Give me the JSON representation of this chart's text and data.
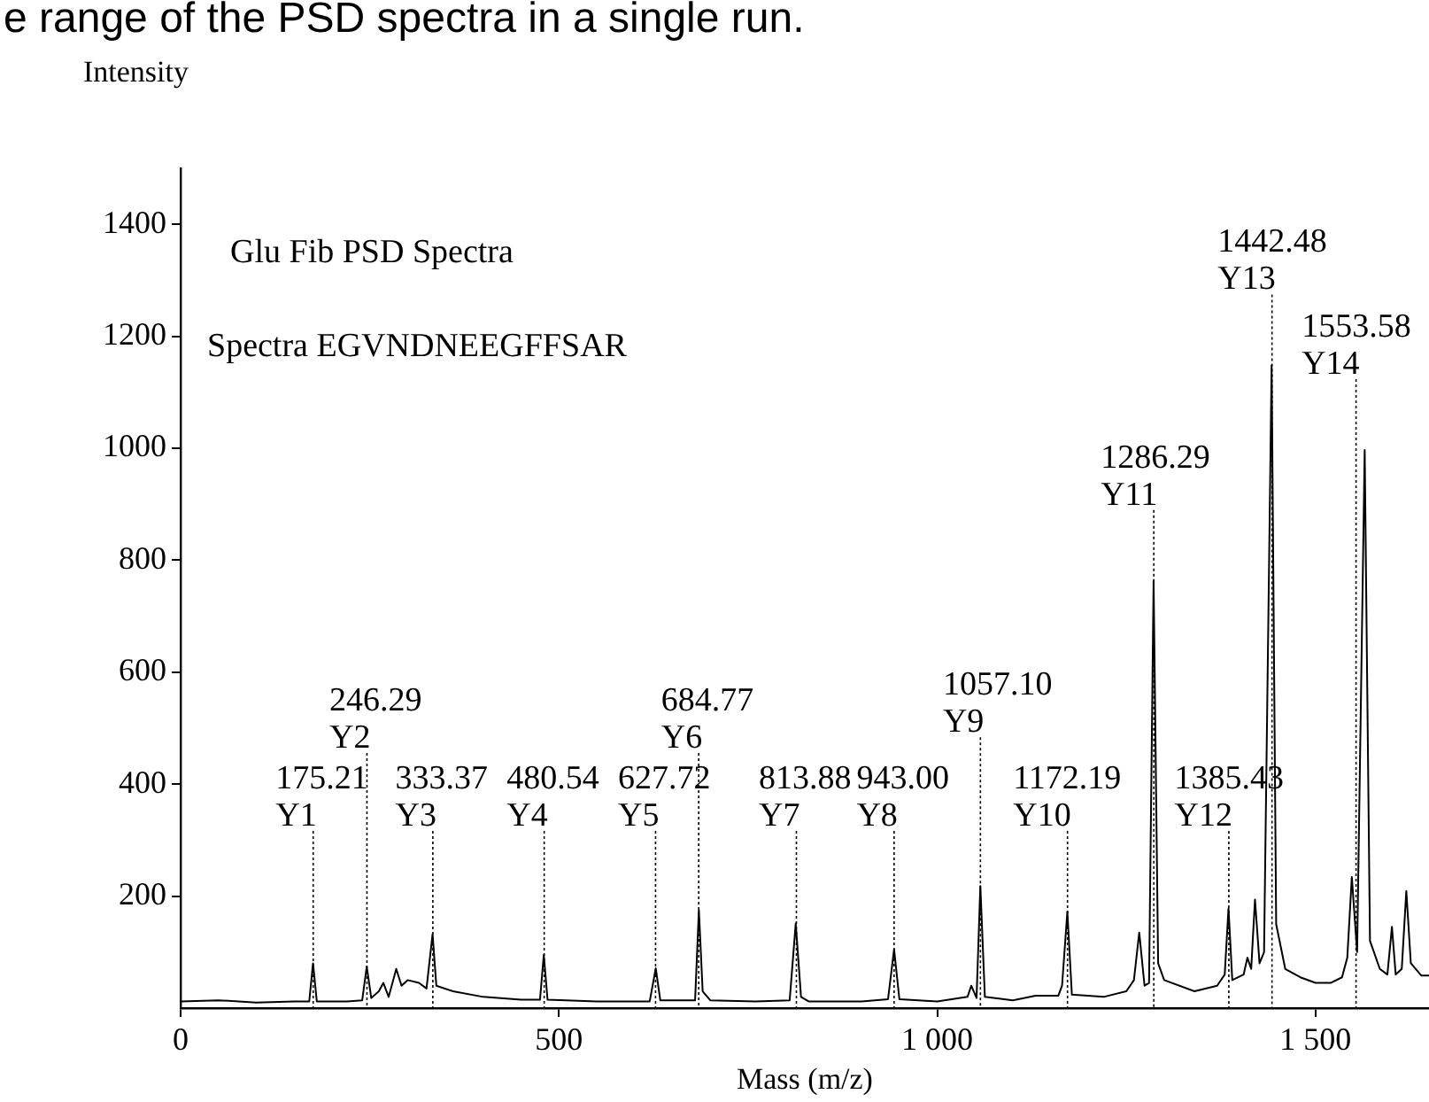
{
  "chart_data": {
    "type": "line",
    "title": "Glu Fib PSD Spectra",
    "subtitle": "Spectra EGVNDNEEGFFSAR",
    "xlabel": "Mass (m/z)",
    "ylabel": "Intensity",
    "x": [
      0,
      50,
      100,
      150,
      170,
      175,
      180,
      220,
      240,
      246,
      252,
      262,
      268,
      275,
      285,
      292,
      300,
      315,
      325,
      333,
      338,
      360,
      400,
      450,
      475,
      480,
      485,
      550,
      620,
      628,
      634,
      680,
      685,
      690,
      700,
      760,
      805,
      813,
      820,
      830,
      900,
      935,
      943,
      950,
      1000,
      1040,
      1045,
      1052,
      1057,
      1063,
      1100,
      1130,
      1160,
      1165,
      1172,
      1178,
      1220,
      1250,
      1260,
      1267,
      1274,
      1280,
      1286,
      1292,
      1300,
      1340,
      1370,
      1380,
      1385,
      1390,
      1405,
      1410,
      1415,
      1420,
      1426,
      1432,
      1442,
      1448,
      1460,
      1480,
      1500,
      1520,
      1535,
      1542,
      1548,
      1555,
      1565,
      1572,
      1585,
      1595,
      1601,
      1606,
      1614,
      1620,
      1626,
      1640,
      1650
    ],
    "series": [
      {
        "color": "#000000",
        "values": [
          12,
          14,
          10,
          12,
          12,
          80,
          12,
          12,
          14,
          74,
          18,
          30,
          45,
          20,
          70,
          40,
          50,
          45,
          35,
          132,
          40,
          30,
          20,
          15,
          15,
          95,
          15,
          12,
          12,
          71,
          14,
          14,
          175,
          30,
          14,
          12,
          14,
          151,
          20,
          12,
          12,
          16,
          105,
          16,
          12,
          20,
          40,
          18,
          218,
          20,
          14,
          22,
          22,
          40,
          172,
          24,
          20,
          30,
          50,
          135,
          40,
          45,
          763,
          80,
          50,
          30,
          40,
          60,
          178,
          50,
          60,
          90,
          70,
          194,
          80,
          100,
          1148,
          150,
          70,
          55,
          45,
          45,
          55,
          90,
          234,
          100,
          997,
          120,
          70,
          60,
          145,
          60,
          70,
          209,
          80,
          58,
          58
        ]
      }
    ],
    "xlim": [
      0,
      1650
    ],
    "xticks": [
      0,
      500,
      {
        "value": 1000,
        "label": "1 000"
      },
      {
        "value": 1500,
        "label": "1 500"
      }
    ],
    "ylim": [
      0,
      1500
    ],
    "yticks": [
      200,
      400,
      600,
      800,
      1000,
      1200,
      1400
    ],
    "grid": false,
    "legend": false,
    "marker": "none",
    "line_style": "solid",
    "annotations": [
      "e range of the PSD spectra in a single run."
    ],
    "ref_lines": [
      {
        "axis": "x",
        "value": 175.21,
        "label": "175.21\nY1",
        "line_style": "dotted"
      },
      {
        "axis": "x",
        "value": 246.29,
        "label": "246.29\nY2",
        "line_style": "dotted"
      },
      {
        "axis": "x",
        "value": 333.37,
        "label": "333.37\nY3",
        "line_style": "dotted"
      },
      {
        "axis": "x",
        "value": 480.54,
        "label": "480.54\nY4",
        "line_style": "dotted"
      },
      {
        "axis": "x",
        "value": 627.72,
        "label": "627.72\nY5",
        "line_style": "dotted"
      },
      {
        "axis": "x",
        "value": 684.77,
        "label": "684.77\nY6",
        "line_style": "dotted"
      },
      {
        "axis": "x",
        "value": 813.88,
        "label": "813.88\nY7",
        "line_style": "dotted"
      },
      {
        "axis": "x",
        "value": 943.0,
        "label": "943.00\nY8",
        "line_style": "dotted"
      },
      {
        "axis": "x",
        "value": 1057.1,
        "label": "1057.10\nY9",
        "line_style": "dotted"
      },
      {
        "axis": "x",
        "value": 1172.19,
        "label": "1172.19\nY10",
        "line_style": "dotted"
      },
      {
        "axis": "x",
        "value": 1286.29,
        "label": "1286.29\nY11",
        "line_style": "dotted"
      },
      {
        "axis": "x",
        "value": 1385.43,
        "label": "1385.43\nY12",
        "line_style": "dotted"
      },
      {
        "axis": "x",
        "value": 1442.48,
        "label": "1442.48\nY13",
        "line_style": "dotted"
      },
      {
        "axis": "x",
        "value": 1553.58,
        "label": "1553.58\nY14",
        "line_style": "dotted"
      }
    ]
  }
}
